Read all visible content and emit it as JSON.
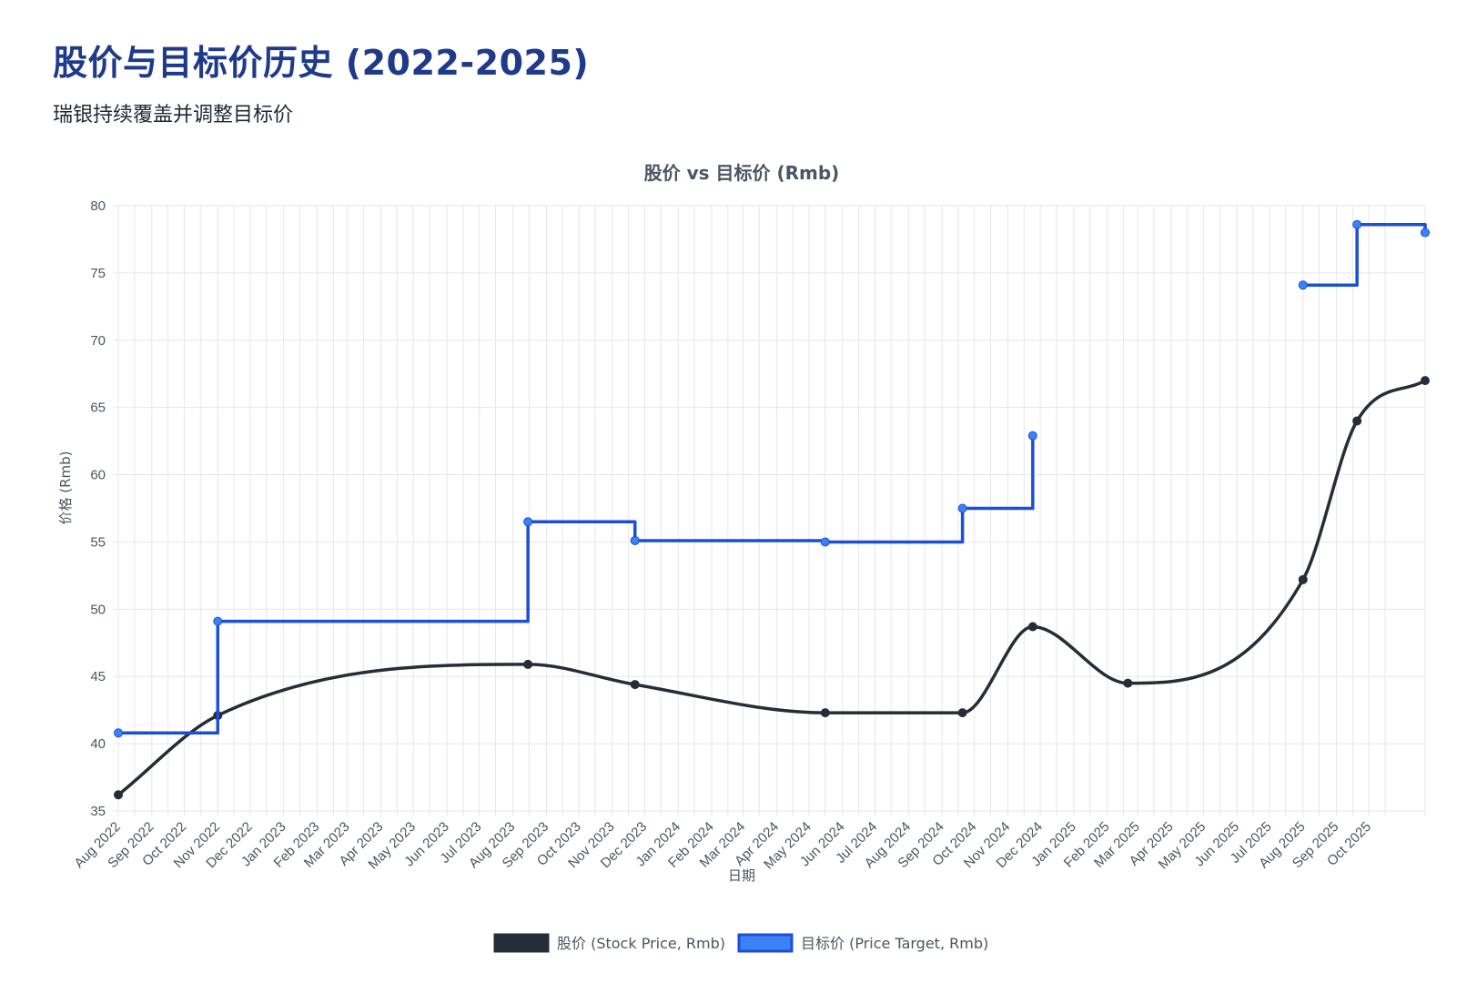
{
  "header": {
    "title": "股价与目标价历史 (2022-2025)",
    "subtitle": "瑞银持续覆盖并调整目标价"
  },
  "chart_data": {
    "type": "line",
    "title": "股价 vs 目标价 (Rmb)",
    "xlabel": "日期",
    "ylabel": "价格 (Rmb)",
    "ylim": [
      35,
      80
    ],
    "y_ticks": [
      "35",
      "40",
      "45",
      "50",
      "55",
      "60",
      "65",
      "70",
      "75",
      "80"
    ],
    "x_range": [
      "2022-08-01",
      "2025-11-22"
    ],
    "x_ticks": [
      "Aug 2022",
      "Sep 2022",
      "Oct 2022",
      "Nov 2022",
      "Dec 2022",
      "Jan 2023",
      "Feb 2023",
      "Mar 2023",
      "Apr 2023",
      "May 2023",
      "Jun 2023",
      "Jul 2023",
      "Aug 2023",
      "Sep 2023",
      "Oct 2023",
      "Nov 2023",
      "Dec 2023",
      "Jan 2024",
      "Feb 2024",
      "Mar 2024",
      "Apr 2024",
      "May 2024",
      "Jun 2024",
      "Jul 2024",
      "Aug 2024",
      "Sep 2024",
      "Oct 2024",
      "Nov 2024",
      "Dec 2024",
      "Jan 2025",
      "Feb 2025",
      "Mar 2025",
      "Apr 2025",
      "May 2025",
      "Jun 2025",
      "Jul 2025",
      "Aug 2025",
      "Sep 2025",
      "Oct 2025"
    ],
    "grid": true,
    "legend_position": "bottom",
    "series": [
      {
        "name": "股价 (Stock Price, Rmb)",
        "color": "#262c38",
        "style": "smooth",
        "points": [
          {
            "x": "2022-08-01",
            "y": 36.2
          },
          {
            "x": "2022-11-01",
            "y": 42.1
          },
          {
            "x": "2023-08-15",
            "y": 45.9
          },
          {
            "x": "2023-11-22",
            "y": 44.4
          },
          {
            "x": "2024-05-16",
            "y": 42.3
          },
          {
            "x": "2024-09-20",
            "y": 42.3
          },
          {
            "x": "2024-11-24",
            "y": 48.7
          },
          {
            "x": "2025-02-20",
            "y": 44.5
          },
          {
            "x": "2025-08-01",
            "y": 52.2
          },
          {
            "x": "2025-09-20",
            "y": 64.0
          },
          {
            "x": "2025-11-22",
            "y": 67.0
          }
        ]
      },
      {
        "name": "目标价 (Price Target, Rmb)",
        "color": "#1d4ed8",
        "point_color": "#3b82f6",
        "style": "stepped",
        "points": [
          {
            "x": "2022-08-01",
            "y": 40.8
          },
          {
            "x": "2022-11-01",
            "y": 49.1
          },
          {
            "x": "2023-08-15",
            "y": 56.5
          },
          {
            "x": "2023-11-22",
            "y": 55.1
          },
          {
            "x": "2024-05-16",
            "y": 55.0
          },
          {
            "x": "2024-09-20",
            "y": 57.5
          },
          {
            "x": "2024-11-24",
            "y": 62.9
          },
          {
            "x": "2025-08-01",
            "y": 74.1,
            "break_before": true
          },
          {
            "x": "2025-09-20",
            "y": 78.6
          },
          {
            "x": "2025-11-22",
            "y": 78.0
          }
        ]
      }
    ]
  }
}
